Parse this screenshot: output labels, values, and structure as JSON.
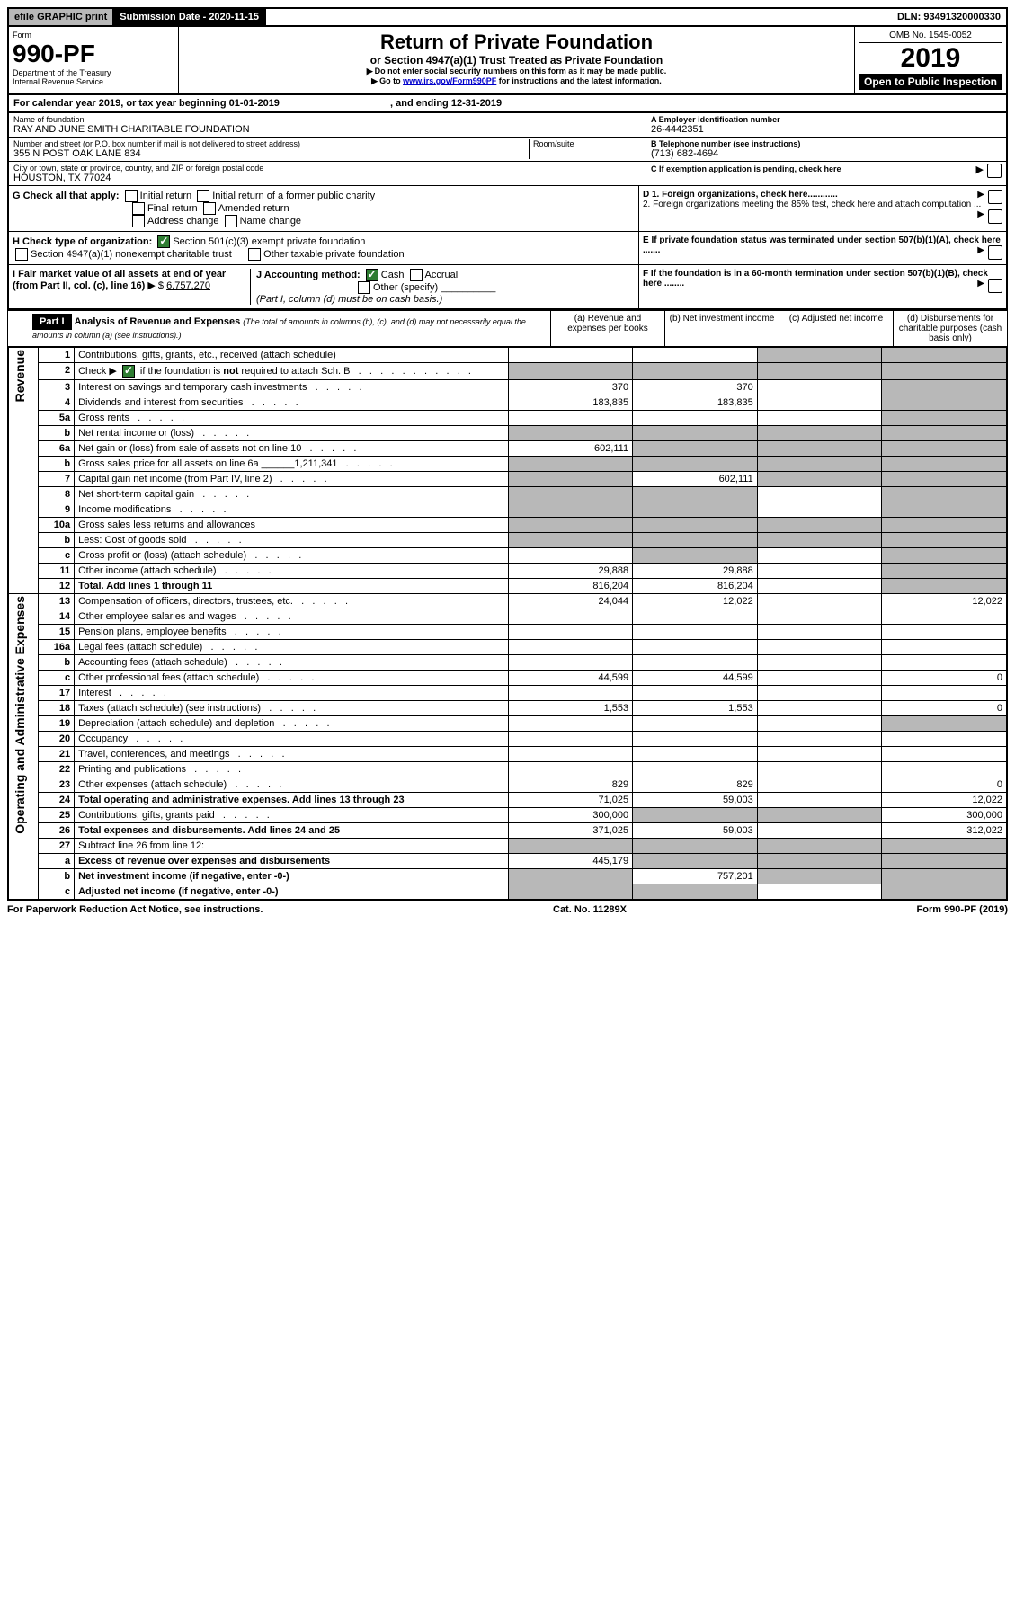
{
  "topbar": {
    "efile": "efile GRAPHIC print",
    "subdate_label": "Submission Date - 2020-11-15",
    "dln": "DLN: 93491320000330"
  },
  "header": {
    "form": "Form",
    "form_no": "990-PF",
    "dept": "Department of the Treasury",
    "irs": "Internal Revenue Service",
    "title": "Return of Private Foundation",
    "subtitle": "or Section 4947(a)(1) Trust Treated as Private Foundation",
    "warn1": "Do not enter social security numbers on this form as it may be made public.",
    "warn2_pre": "Go to ",
    "warn2_link": "www.irs.gov/Form990PF",
    "warn2_post": " for instructions and the latest information.",
    "omb": "OMB No. 1545-0052",
    "year": "2019",
    "open": "Open to Public Inspection"
  },
  "cal": {
    "text_pre": "For calendar year 2019, or tax year beginning ",
    "begin": "01-01-2019",
    "text_mid": ", and ending ",
    "end": "12-31-2019"
  },
  "id": {
    "name_label": "Name of foundation",
    "name": "RAY AND JUNE SMITH CHARITABLE FOUNDATION",
    "addr_label": "Number and street (or P.O. box number if mail is not delivered to street address)",
    "addr": "355 N POST OAK LANE 834",
    "room_label": "Room/suite",
    "city_label": "City or town, state or province, country, and ZIP or foreign postal code",
    "city": "HOUSTON, TX  77024",
    "a_label": "A Employer identification number",
    "a_val": "26-4442351",
    "b_label": "B Telephone number (see instructions)",
    "b_val": "(713) 682-4694",
    "c_label": "C If exemption application is pending, check here"
  },
  "checks": {
    "g_label": "G Check all that apply:",
    "g_opts": [
      "Initial return",
      "Initial return of a former public charity",
      "Final return",
      "Amended return",
      "Address change",
      "Name change"
    ],
    "h_label": "H Check type of organization:",
    "h_opt1": "Section 501(c)(3) exempt private foundation",
    "h_opt2": "Section 4947(a)(1) nonexempt charitable trust",
    "h_opt3": "Other taxable private foundation",
    "i_label": "I Fair market value of all assets at end of year (from Part II, col. (c), line 16)",
    "i_val": "6,757,270",
    "j_label": "J Accounting method:",
    "j_cash": "Cash",
    "j_accrual": "Accrual",
    "j_other": "Other (specify)",
    "j_note": "(Part I, column (d) must be on cash basis.)",
    "d1": "D 1. Foreign organizations, check here............",
    "d2": "2. Foreign organizations meeting the 85% test, check here and attach computation ...",
    "e": "E If private foundation status was terminated under section 507(b)(1)(A), check here .......",
    "f": "F If the foundation is in a 60-month termination under section 507(b)(1)(B), check here ........"
  },
  "part1": {
    "label": "Part I",
    "title": "Analysis of Revenue and Expenses",
    "note": "(The total of amounts in columns (b), (c), and (d) may not necessarily equal the amounts in column (a) (see instructions).)",
    "col_a": "(a) Revenue and expenses per books",
    "col_b": "(b) Net investment income",
    "col_c": "(c) Adjusted net income",
    "col_d": "(d) Disbursements for charitable purposes (cash basis only)"
  },
  "sections": {
    "revenue": "Revenue",
    "expenses": "Operating and Administrative Expenses"
  },
  "rows": [
    {
      "n": "1",
      "d": "Contributions, gifts, grants, etc., received (attach schedule)",
      "a": "",
      "b": "",
      "c": "",
      "dd": "",
      "sa": false,
      "sb": false,
      "sc": true,
      "sd": true
    },
    {
      "n": "2",
      "d": "Check ▶ ☑ if the foundation is not required to attach Sch. B",
      "a": "",
      "b": "",
      "c": "",
      "dd": "",
      "sa": true,
      "sb": true,
      "sc": true,
      "sd": true,
      "dots": true
    },
    {
      "n": "3",
      "d": "Interest on savings and temporary cash investments",
      "a": "370",
      "b": "370",
      "c": "",
      "dd": "",
      "sa": false,
      "sb": false,
      "sc": false,
      "sd": true
    },
    {
      "n": "4",
      "d": "Dividends and interest from securities",
      "a": "183,835",
      "b": "183,835",
      "c": "",
      "dd": "",
      "sa": false,
      "sb": false,
      "sc": false,
      "sd": true
    },
    {
      "n": "5a",
      "d": "Gross rents",
      "a": "",
      "b": "",
      "c": "",
      "dd": "",
      "sa": false,
      "sb": false,
      "sc": false,
      "sd": true
    },
    {
      "n": "b",
      "d": "Net rental income or (loss)",
      "a": "",
      "b": "",
      "c": "",
      "dd": "",
      "sa": true,
      "sb": true,
      "sc": true,
      "sd": true
    },
    {
      "n": "6a",
      "d": "Net gain or (loss) from sale of assets not on line 10",
      "a": "602,111",
      "b": "",
      "c": "",
      "dd": "",
      "sa": false,
      "sb": true,
      "sc": true,
      "sd": true
    },
    {
      "n": "b",
      "d": "Gross sales price for all assets on line 6a ______1,211,341",
      "a": "",
      "b": "",
      "c": "",
      "dd": "",
      "sa": true,
      "sb": true,
      "sc": true,
      "sd": true
    },
    {
      "n": "7",
      "d": "Capital gain net income (from Part IV, line 2)",
      "a": "",
      "b": "602,111",
      "c": "",
      "dd": "",
      "sa": true,
      "sb": false,
      "sc": true,
      "sd": true
    },
    {
      "n": "8",
      "d": "Net short-term capital gain",
      "a": "",
      "b": "",
      "c": "",
      "dd": "",
      "sa": true,
      "sb": true,
      "sc": false,
      "sd": true
    },
    {
      "n": "9",
      "d": "Income modifications",
      "a": "",
      "b": "",
      "c": "",
      "dd": "",
      "sa": true,
      "sb": true,
      "sc": false,
      "sd": true
    },
    {
      "n": "10a",
      "d": "Gross sales less returns and allowances",
      "a": "",
      "b": "",
      "c": "",
      "dd": "",
      "sa": true,
      "sb": true,
      "sc": true,
      "sd": true
    },
    {
      "n": "b",
      "d": "Less: Cost of goods sold",
      "a": "",
      "b": "",
      "c": "",
      "dd": "",
      "sa": true,
      "sb": true,
      "sc": true,
      "sd": true
    },
    {
      "n": "c",
      "d": "Gross profit or (loss) (attach schedule)",
      "a": "",
      "b": "",
      "c": "",
      "dd": "",
      "sa": false,
      "sb": true,
      "sc": false,
      "sd": true
    },
    {
      "n": "11",
      "d": "Other income (attach schedule)",
      "a": "29,888",
      "b": "29,888",
      "c": "",
      "dd": "",
      "sa": false,
      "sb": false,
      "sc": false,
      "sd": true
    },
    {
      "n": "12",
      "d": "Total. Add lines 1 through 11",
      "a": "816,204",
      "b": "816,204",
      "c": "",
      "dd": "",
      "sa": false,
      "sb": false,
      "sc": false,
      "sd": true,
      "bold": true
    },
    {
      "n": "13",
      "d": "Compensation of officers, directors, trustees, etc.",
      "a": "24,044",
      "b": "12,022",
      "c": "",
      "dd": "12,022",
      "sa": false,
      "sb": false,
      "sc": false,
      "sd": false
    },
    {
      "n": "14",
      "d": "Other employee salaries and wages",
      "a": "",
      "b": "",
      "c": "",
      "dd": "",
      "sa": false,
      "sb": false,
      "sc": false,
      "sd": false
    },
    {
      "n": "15",
      "d": "Pension plans, employee benefits",
      "a": "",
      "b": "",
      "c": "",
      "dd": "",
      "sa": false,
      "sb": false,
      "sc": false,
      "sd": false
    },
    {
      "n": "16a",
      "d": "Legal fees (attach schedule)",
      "a": "",
      "b": "",
      "c": "",
      "dd": "",
      "sa": false,
      "sb": false,
      "sc": false,
      "sd": false
    },
    {
      "n": "b",
      "d": "Accounting fees (attach schedule)",
      "a": "",
      "b": "",
      "c": "",
      "dd": "",
      "sa": false,
      "sb": false,
      "sc": false,
      "sd": false
    },
    {
      "n": "c",
      "d": "Other professional fees (attach schedule)",
      "a": "44,599",
      "b": "44,599",
      "c": "",
      "dd": "0",
      "sa": false,
      "sb": false,
      "sc": false,
      "sd": false
    },
    {
      "n": "17",
      "d": "Interest",
      "a": "",
      "b": "",
      "c": "",
      "dd": "",
      "sa": false,
      "sb": false,
      "sc": false,
      "sd": false
    },
    {
      "n": "18",
      "d": "Taxes (attach schedule) (see instructions)",
      "a": "1,553",
      "b": "1,553",
      "c": "",
      "dd": "0",
      "sa": false,
      "sb": false,
      "sc": false,
      "sd": false
    },
    {
      "n": "19",
      "d": "Depreciation (attach schedule) and depletion",
      "a": "",
      "b": "",
      "c": "",
      "dd": "",
      "sa": false,
      "sb": false,
      "sc": false,
      "sd": true
    },
    {
      "n": "20",
      "d": "Occupancy",
      "a": "",
      "b": "",
      "c": "",
      "dd": "",
      "sa": false,
      "sb": false,
      "sc": false,
      "sd": false
    },
    {
      "n": "21",
      "d": "Travel, conferences, and meetings",
      "a": "",
      "b": "",
      "c": "",
      "dd": "",
      "sa": false,
      "sb": false,
      "sc": false,
      "sd": false
    },
    {
      "n": "22",
      "d": "Printing and publications",
      "a": "",
      "b": "",
      "c": "",
      "dd": "",
      "sa": false,
      "sb": false,
      "sc": false,
      "sd": false
    },
    {
      "n": "23",
      "d": "Other expenses (attach schedule)",
      "a": "829",
      "b": "829",
      "c": "",
      "dd": "0",
      "sa": false,
      "sb": false,
      "sc": false,
      "sd": false
    },
    {
      "n": "24",
      "d": "Total operating and administrative expenses. Add lines 13 through 23",
      "a": "71,025",
      "b": "59,003",
      "c": "",
      "dd": "12,022",
      "sa": false,
      "sb": false,
      "sc": false,
      "sd": false,
      "bold": true
    },
    {
      "n": "25",
      "d": "Contributions, gifts, grants paid",
      "a": "300,000",
      "b": "",
      "c": "",
      "dd": "300,000",
      "sa": false,
      "sb": true,
      "sc": true,
      "sd": false
    },
    {
      "n": "26",
      "d": "Total expenses and disbursements. Add lines 24 and 25",
      "a": "371,025",
      "b": "59,003",
      "c": "",
      "dd": "312,022",
      "sa": false,
      "sb": false,
      "sc": false,
      "sd": false,
      "bold": true
    },
    {
      "n": "27",
      "d": "Subtract line 26 from line 12:",
      "a": "",
      "b": "",
      "c": "",
      "dd": "",
      "sa": true,
      "sb": true,
      "sc": true,
      "sd": true
    },
    {
      "n": "a",
      "d": "Excess of revenue over expenses and disbursements",
      "a": "445,179",
      "b": "",
      "c": "",
      "dd": "",
      "sa": false,
      "sb": true,
      "sc": true,
      "sd": true,
      "bold": true
    },
    {
      "n": "b",
      "d": "Net investment income (if negative, enter -0-)",
      "a": "",
      "b": "757,201",
      "c": "",
      "dd": "",
      "sa": true,
      "sb": false,
      "sc": true,
      "sd": true,
      "bold": true
    },
    {
      "n": "c",
      "d": "Adjusted net income (if negative, enter -0-)",
      "a": "",
      "b": "",
      "c": "",
      "dd": "",
      "sa": true,
      "sb": true,
      "sc": false,
      "sd": true,
      "bold": true
    }
  ],
  "footer": {
    "left": "For Paperwork Reduction Act Notice, see instructions.",
    "mid": "Cat. No. 11289X",
    "right": "Form 990-PF (2019)"
  }
}
